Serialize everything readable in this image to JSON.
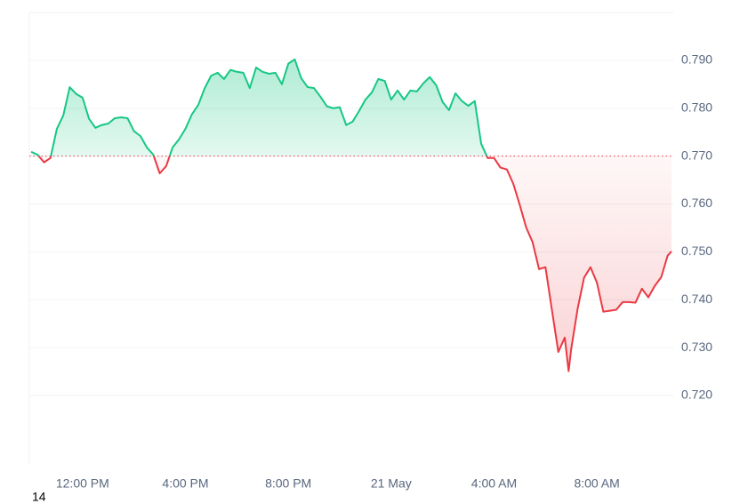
{
  "chart_data": {
    "type": "line",
    "x": [
      -2.0,
      -1.75,
      -1.5,
      -1.25,
      -1.0,
      -0.75,
      -0.5,
      -0.25,
      0,
      0.25,
      0.5,
      0.75,
      1.0,
      1.25,
      1.5,
      1.75,
      2.0,
      2.25,
      2.5,
      2.75,
      3.0,
      3.25,
      3.5,
      3.75,
      4.0,
      4.25,
      4.5,
      4.75,
      5.0,
      5.25,
      5.5,
      5.75,
      6.0,
      6.25,
      6.5,
      6.75,
      7.0,
      7.25,
      7.5,
      7.75,
      8.0,
      8.25,
      8.5,
      8.75,
      9.0,
      9.25,
      9.5,
      9.75,
      10.0,
      10.25,
      10.5,
      10.75,
      11.0,
      11.25,
      11.5,
      11.75,
      12.0,
      12.25,
      12.5,
      12.75,
      13.0,
      13.25,
      13.5,
      13.75,
      14.0,
      14.25,
      14.5,
      14.75,
      15.0,
      15.25,
      15.5,
      15.75,
      16.0,
      16.25,
      16.5,
      16.75,
      17.0,
      17.25,
      17.5,
      17.75,
      18.0,
      18.25,
      18.5,
      18.75,
      18.9,
      19.0,
      19.25,
      19.5,
      19.75,
      20.0,
      20.25,
      20.5,
      20.75,
      21.0,
      21.25,
      21.5,
      21.75,
      22.0,
      22.25,
      22.5,
      22.75,
      22.9
    ],
    "values": [
      0.7709,
      0.7703,
      0.7687,
      0.7696,
      0.7757,
      0.7785,
      0.7844,
      0.783,
      0.7822,
      0.7778,
      0.7759,
      0.7765,
      0.7768,
      0.7779,
      0.7781,
      0.7779,
      0.7752,
      0.7742,
      0.7718,
      0.7703,
      0.7664,
      0.7679,
      0.7718,
      0.7735,
      0.7757,
      0.7787,
      0.7807,
      0.7842,
      0.7868,
      0.7874,
      0.7861,
      0.788,
      0.7876,
      0.7874,
      0.7842,
      0.7885,
      0.7876,
      0.7872,
      0.7874,
      0.785,
      0.7893,
      0.7902,
      0.7863,
      0.7844,
      0.7842,
      0.7824,
      0.7804,
      0.78,
      0.7802,
      0.7765,
      0.7772,
      0.7794,
      0.7818,
      0.7833,
      0.7861,
      0.7857,
      0.7818,
      0.7837,
      0.7818,
      0.7837,
      0.7835,
      0.7852,
      0.7865,
      0.7848,
      0.7813,
      0.7796,
      0.7831,
      0.7815,
      0.7805,
      0.7815,
      0.7726,
      0.7696,
      0.7696,
      0.7676,
      0.7672,
      0.7642,
      0.7598,
      0.7551,
      0.752,
      0.7464,
      0.7468,
      0.7379,
      0.7291,
      0.7321,
      0.7251,
      0.7297,
      0.7381,
      0.7446,
      0.7468,
      0.7436,
      0.7375,
      0.7377,
      0.7379,
      0.7395,
      0.7395,
      0.7394,
      0.7423,
      0.7405,
      0.7429,
      0.7447,
      0.7492,
      0.7501
    ],
    "baseline": 0.77,
    "colors": {
      "above": "#16c784",
      "below": "#ea3943"
    },
    "xlim": [
      -2.07,
      22.97
    ],
    "xticks": [
      {
        "value": 0,
        "label": "12:00 PM"
      },
      {
        "value": 4,
        "label": "4:00 PM"
      },
      {
        "value": 8,
        "label": "8:00 PM"
      },
      {
        "value": 12,
        "label": "21 May"
      },
      {
        "value": 16,
        "label": "4:00 AM"
      },
      {
        "value": 20,
        "label": "8:00 AM"
      }
    ],
    "ylim": [
      0.7057,
      0.8
    ],
    "yticks": [
      {
        "value": 0.72,
        "label": "0.720"
      },
      {
        "value": 0.73,
        "label": "0.730"
      },
      {
        "value": 0.74,
        "label": "0.740"
      },
      {
        "value": 0.75,
        "label": "0.750"
      },
      {
        "value": 0.76,
        "label": "0.760"
      },
      {
        "value": 0.77,
        "label": "0.770"
      },
      {
        "value": 0.78,
        "label": "0.780"
      },
      {
        "value": 0.79,
        "label": "0.790"
      }
    ],
    "grid": true,
    "corner_label": "14"
  }
}
